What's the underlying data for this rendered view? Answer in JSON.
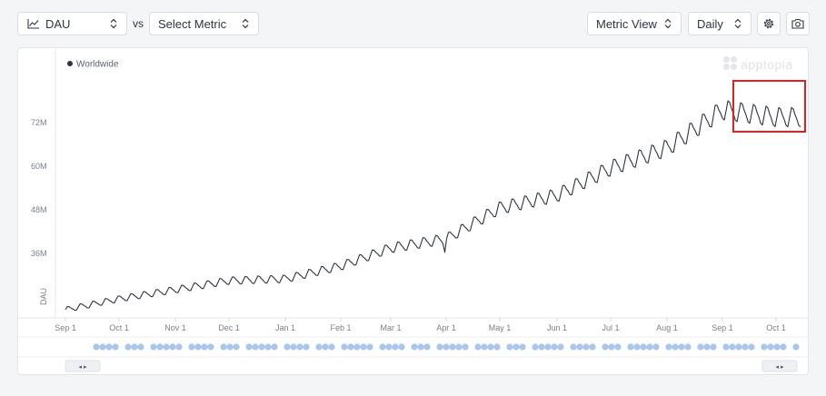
{
  "toolbar": {
    "metric": "DAU",
    "vs": "vs",
    "compare_placeholder": "Select Metric",
    "view": "Metric View",
    "granularity": "Daily"
  },
  "brand": {
    "name": "apptopia"
  },
  "legend": {
    "label": "Worldwide",
    "color": "#2e3443"
  },
  "colors": {
    "line": "#2e3443",
    "highlight": "#e02020",
    "marker": "#a9c6ee",
    "grid": "#e6e8ec"
  },
  "chart_data": {
    "type": "line",
    "ylabel": "DAU",
    "y_ticks": [
      "72M",
      "60M",
      "48M",
      "36M"
    ],
    "x_ticks": [
      "Sep 1",
      "Oct 1",
      "Nov 1",
      "Dec 1",
      "Jan 1",
      "Feb 1",
      "Mar 1",
      "Apr 1",
      "May 1",
      "Jun 1",
      "Jul 1",
      "Aug 1",
      "Sep 1",
      "Oct 1"
    ],
    "ylim_millions": [
      20,
      85
    ],
    "series": [
      {
        "name": "Worldwide",
        "x": [
          "Sep 1",
          "Oct 1",
          "Nov 1",
          "Dec 1",
          "Jan 1",
          "Feb 1",
          "Mar 1",
          "Apr 1",
          "May 1",
          "Jun 1",
          "Jul 1",
          "Aug 1",
          "Sep 1",
          "Oct 1"
        ],
        "values_millions": [
          20.5,
          23.5,
          26,
          28.5,
          29,
          32.5,
          37.5,
          40,
          48.5,
          52,
          59.5,
          65,
          75.5,
          73.5
        ]
      }
    ],
    "highlight_region": {
      "from": "Sep 1",
      "to": "Oct 1"
    }
  },
  "navigator": {
    "left_arrows": "◂ ▸",
    "right_arrows": "◂ ▸"
  }
}
